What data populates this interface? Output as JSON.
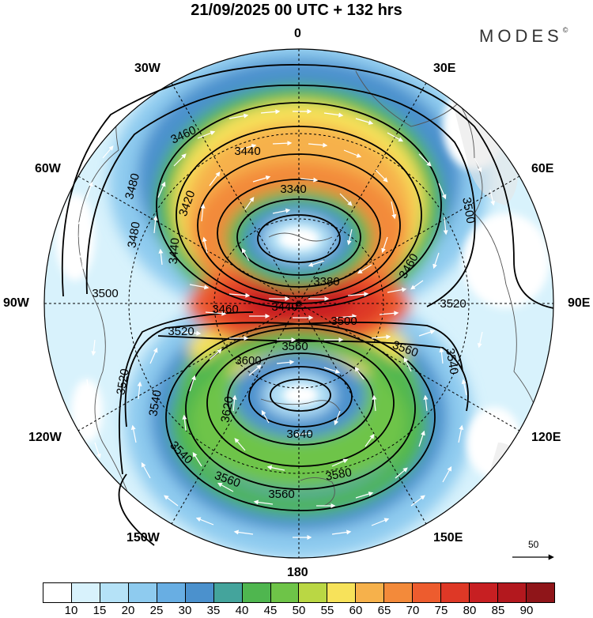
{
  "title": "21/09/2025  00 UTC  + 132 hrs",
  "brand": "MODES",
  "brand_mark": "©",
  "longitude_labels": {
    "lon_0": "0",
    "lon_30e": "30E",
    "lon_60e": "60E",
    "lon_90e": "90E",
    "lon_120e": "120E",
    "lon_150e": "150E",
    "lon_180": "180",
    "lon_150w": "150W",
    "lon_120w": "120W",
    "lon_90w": "90W",
    "lon_60w": "60W",
    "lon_30w": "30W"
  },
  "contour_labels": {
    "c1": "3460",
    "c2": "3440",
    "c3": "3480",
    "c4": "3420",
    "c5": "3340",
    "c6": "3500",
    "c7": "3480",
    "c8": "3440",
    "c9": "3380",
    "c10": "3460",
    "c11": "3500",
    "c12": "3520",
    "c13": "3500",
    "c14": "3440",
    "c15": "3460",
    "c16": "3520",
    "c17": "3560",
    "c18": "3560",
    "c19": "3600",
    "c20": "3540",
    "c21": "3520",
    "c22": "3540",
    "c23": "3620",
    "c24": "3640",
    "c25": "3540",
    "c26": "3560",
    "c27": "3580",
    "c28": "3560",
    "c29": "3480",
    "c30": "3420"
  },
  "reference_vector": "50",
  "colorbar": {
    "colors": [
      "#ffffff",
      "#d8f2fc",
      "#b5e2f7",
      "#8ecbef",
      "#68aee3",
      "#4b91cd",
      "#44a49c",
      "#4fb64f",
      "#6ec448",
      "#bad744",
      "#f7e25a",
      "#f6b14b",
      "#f38a3a",
      "#ed5c2e",
      "#de3826",
      "#c71f22",
      "#b3181e",
      "#8f1519"
    ],
    "tick_labels": [
      "10",
      "15",
      "20",
      "25",
      "30",
      "35",
      "40",
      "45",
      "50",
      "55",
      "60",
      "65",
      "70",
      "75",
      "80",
      "85",
      "90"
    ]
  }
}
